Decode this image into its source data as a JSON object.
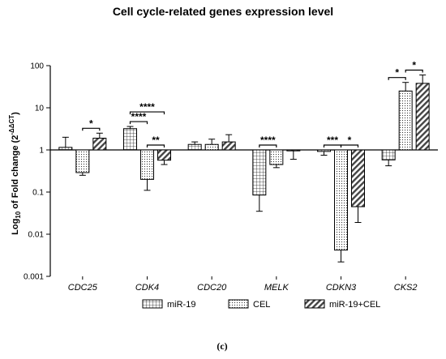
{
  "chart_data": {
    "type": "bar",
    "title": "Cell cycle-related genes expression level",
    "ylabel": {
      "prefix": "Log",
      "sub": "10",
      "middle": " of Fold change (2",
      "sup": "-ΔΔCT",
      "suffix": ")"
    },
    "yscale": "log",
    "ylim": [
      0.001,
      100
    ],
    "ytick_values": [
      0.001,
      0.01,
      0.1,
      1,
      10,
      100
    ],
    "ytick_labels": [
      "0.001",
      "0.01",
      "0.1",
      "1",
      "10",
      "100"
    ],
    "categories": [
      "CDC25",
      "CDK4",
      "CDC20",
      "MELK",
      "CDKN3",
      "CKS2"
    ],
    "series": [
      {
        "name": "miR-19",
        "pattern": "grid",
        "values": [
          1.15,
          3.2,
          1.35,
          0.085,
          0.92,
          0.58
        ],
        "err_up": [
          2.0,
          3.6,
          1.55,
          0.1,
          1.0,
          0.7
        ],
        "err_down": [
          1.15,
          3.2,
          1.15,
          0.035,
          0.75,
          0.42
        ]
      },
      {
        "name": "CEL",
        "pattern": "dots",
        "values": [
          0.29,
          0.2,
          1.35,
          0.45,
          0.0042,
          25
        ],
        "err_up": [
          0.29,
          0.2,
          1.8,
          0.65,
          0.0042,
          40
        ],
        "err_down": [
          0.25,
          0.11,
          1.35,
          0.38,
          0.0022,
          25
        ]
      },
      {
        "name": "miR-19+CEL",
        "pattern": "hatch",
        "values": [
          1.9,
          0.57,
          1.55,
          0.95,
          0.045,
          38
        ],
        "err_up": [
          2.5,
          0.75,
          2.3,
          0.95,
          0.09,
          60
        ],
        "err_down": [
          1.9,
          0.45,
          1.55,
          0.6,
          0.019,
          38
        ]
      }
    ],
    "significance": [
      {
        "label": "*",
        "category": 0,
        "from": 1,
        "to": 2,
        "level": 1
      },
      {
        "label": "****",
        "category": 1,
        "from": 0,
        "to": 1,
        "level": 1
      },
      {
        "label": "****",
        "category": 1,
        "from": 0,
        "to": 2,
        "level": 2
      },
      {
        "label": "**",
        "category": 1,
        "from": 1,
        "to": 2,
        "level": 1
      },
      {
        "label": "****",
        "category": 3,
        "from": 0,
        "to": 1,
        "level": 1
      },
      {
        "label": "***",
        "category": 4,
        "from": 0,
        "to": 1,
        "level": 1
      },
      {
        "label": "*",
        "category": 4,
        "from": 1,
        "to": 2,
        "level": 1
      },
      {
        "label": "*",
        "category": 5,
        "from": 0,
        "to": 1,
        "level": 1
      },
      {
        "label": "*",
        "category": 5,
        "from": 1,
        "to": 2,
        "level": 1
      }
    ],
    "legend_position": "bottom",
    "grid": false
  },
  "panel_label": "(c)"
}
